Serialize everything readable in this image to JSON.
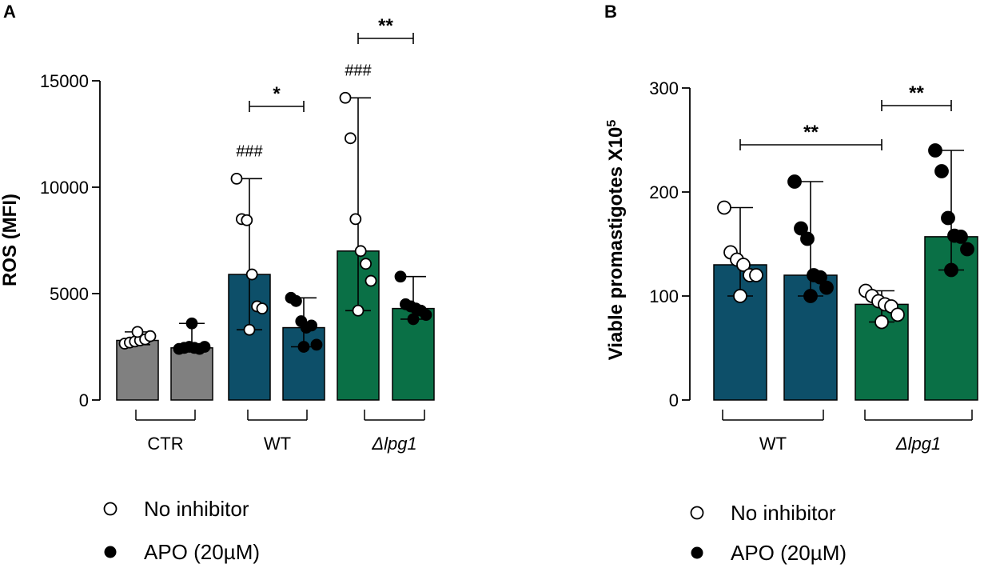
{
  "colors": {
    "ctr": "#808080",
    "wt": "#0d4f69",
    "lpg1": "#0a7046",
    "axis": "#000000"
  },
  "legend": {
    "open_label": "No inhibitor",
    "filled_label": "APO (20µM)"
  },
  "chart_data": [
    {
      "panel": "A",
      "type": "bar",
      "ylabel": "ROS (MFI)",
      "ylim": [
        0,
        15000
      ],
      "yticks": [
        0,
        5000,
        10000,
        15000
      ],
      "groups": [
        {
          "label": "CTR",
          "italic": false
        },
        {
          "label": "WT",
          "italic": false
        },
        {
          "label": "Δlpg1",
          "italic": true
        }
      ],
      "bars": [
        {
          "group": "CTR",
          "treatment": "No inhibitor",
          "color": "#808080",
          "mean": 2800,
          "err": [
            2600,
            3200
          ],
          "points": [
            2650,
            2700,
            2750,
            2800,
            2850,
            3000,
            3200
          ],
          "open": true
        },
        {
          "group": "CTR",
          "treatment": "APO (20µM)",
          "color": "#808080",
          "mean": 2450,
          "err": [
            2300,
            3600
          ],
          "points": [
            2400,
            2450,
            2500,
            2450,
            2400,
            2500,
            3600
          ],
          "open": false
        },
        {
          "group": "WT",
          "treatment": "No inhibitor",
          "color": "#0d4f69",
          "mean": 5900,
          "err": [
            3300,
            10400
          ],
          "points": [
            10400,
            8500,
            8450,
            5900,
            4400,
            4300,
            3300
          ],
          "open": true
        },
        {
          "group": "WT",
          "treatment": "APO (20µM)",
          "color": "#0d4f69",
          "mean": 3400,
          "err": [
            2500,
            4800
          ],
          "points": [
            4800,
            4650,
            3700,
            3400,
            3500,
            2600,
            2500
          ],
          "open": false
        },
        {
          "group": "Δlpg1",
          "treatment": "No inhibitor",
          "color": "#0a7046",
          "mean": 7000,
          "err": [
            4200,
            14200
          ],
          "points": [
            14200,
            12300,
            8500,
            7000,
            6400,
            5600,
            4200
          ],
          "open": true
        },
        {
          "group": "Δlpg1",
          "treatment": "APO (20µM)",
          "color": "#0a7046",
          "mean": 4300,
          "err": [
            3800,
            5800
          ],
          "points": [
            5800,
            4500,
            4400,
            4300,
            4200,
            4000,
            3800
          ],
          "open": false
        }
      ],
      "annotations": [
        {
          "text": "###",
          "bar": 2
        },
        {
          "text": "###",
          "bar": 4
        }
      ],
      "significance": [
        {
          "text": "*",
          "from": 2,
          "to": 3
        },
        {
          "text": "**",
          "from": 4,
          "to": 5
        }
      ]
    },
    {
      "panel": "B",
      "type": "bar",
      "ylabel": "Viable promastigotes X10",
      "ylabel_sup": "5",
      "ylim": [
        0,
        300
      ],
      "yticks": [
        0,
        100,
        200,
        300
      ],
      "groups": [
        {
          "label": "WT",
          "italic": false
        },
        {
          "label": "Δlpg1",
          "italic": true
        }
      ],
      "bars": [
        {
          "group": "WT",
          "treatment": "No inhibitor",
          "color": "#0d4f69",
          "mean": 130,
          "err": [
            100,
            185
          ],
          "points": [
            185,
            142,
            135,
            130,
            120,
            120,
            100
          ],
          "open": true
        },
        {
          "group": "WT",
          "treatment": "APO (20µM)",
          "color": "#0d4f69",
          "mean": 120,
          "err": [
            100,
            210
          ],
          "points": [
            210,
            165,
            155,
            120,
            118,
            108,
            100
          ],
          "open": false
        },
        {
          "group": "Δlpg1",
          "treatment": "No inhibitor",
          "color": "#0a7046",
          "mean": 92,
          "err": [
            75,
            105
          ],
          "points": [
            105,
            100,
            95,
            92,
            90,
            82,
            75
          ],
          "open": true
        },
        {
          "group": "Δlpg1",
          "treatment": "APO (20µM)",
          "color": "#0a7046",
          "mean": 157,
          "err": [
            125,
            240
          ],
          "points": [
            240,
            220,
            175,
            158,
            157,
            145,
            125
          ],
          "open": false
        }
      ],
      "annotations": [],
      "significance": [
        {
          "text": "**",
          "from": 0,
          "to": 2
        },
        {
          "text": "**",
          "from": 2,
          "to": 3
        }
      ]
    }
  ]
}
